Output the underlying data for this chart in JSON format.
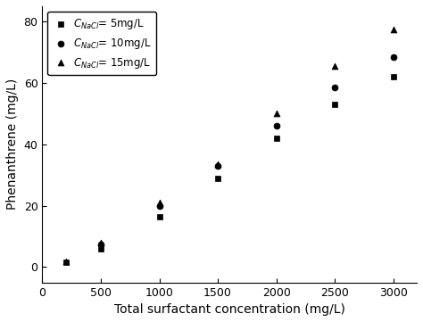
{
  "series": [
    {
      "label": "$C_{NaCl}$= 5mg/L",
      "marker": "s",
      "x": [
        200,
        500,
        1000,
        1500,
        2000,
        2500,
        3000
      ],
      "y": [
        1.5,
        6.0,
        16.5,
        29.0,
        42.0,
        53.0,
        62.0
      ]
    },
    {
      "label": "$C_{NaCl}$= 10mg/L",
      "marker": "o",
      "x": [
        500,
        1000,
        1500,
        2000,
        2500,
        3000
      ],
      "y": [
        7.5,
        20.0,
        33.0,
        46.0,
        58.5,
        68.5
      ]
    },
    {
      "label": "$C_{NaCl}$= 15mg/L",
      "marker": "^",
      "x": [
        200,
        500,
        1000,
        1500,
        2000,
        2500,
        3000
      ],
      "y": [
        2.0,
        8.0,
        21.0,
        33.5,
        50.0,
        65.5,
        77.5
      ]
    }
  ],
  "xlabel": "Total surfactant concentration (mg/L)",
  "ylabel": "Phenanthrene (mg/L)",
  "xlim": [
    0,
    3200
  ],
  "ylim": [
    -5,
    85
  ],
  "xticks": [
    0,
    500,
    1000,
    1500,
    2000,
    2500,
    3000
  ],
  "yticks": [
    0,
    20,
    40,
    60,
    80
  ],
  "marker_size": 5,
  "color": "black",
  "legend_fontsize": 8.5,
  "axis_fontsize": 10,
  "tick_fontsize": 9
}
